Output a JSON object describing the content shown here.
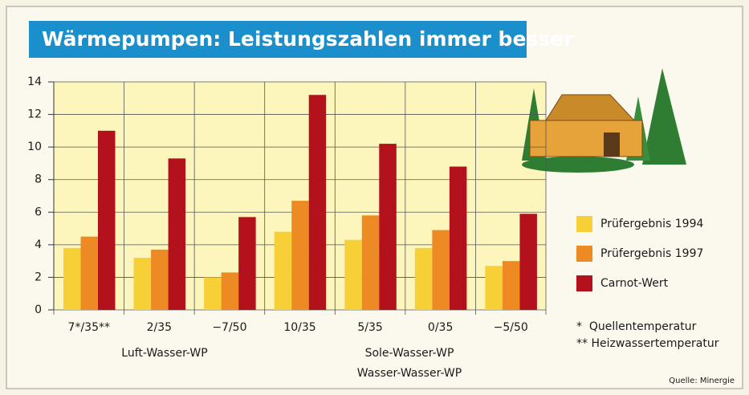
{
  "chart_data": {
    "type": "bar",
    "title": "Wärmepumpen: Leistungszahlen immer besser",
    "categories": [
      "7*/35**",
      "2/35",
      "−7/50",
      "10/35",
      "5/35",
      "0/35",
      "−5/50"
    ],
    "series": [
      {
        "name": "Prüfergebnis 1994",
        "color": "#f7cf36",
        "values": [
          3.8,
          3.2,
          2.0,
          4.8,
          4.3,
          3.8,
          2.7
        ]
      },
      {
        "name": "Prüfergebnis 1997",
        "color": "#ee8a24",
        "values": [
          4.5,
          3.7,
          2.3,
          6.7,
          5.8,
          4.9,
          3.0
        ]
      },
      {
        "name": "Carnot-Wert",
        "color": "#b3121c",
        "values": [
          11.0,
          9.3,
          5.7,
          13.2,
          10.2,
          8.8,
          5.9
        ]
      }
    ],
    "ylim": [
      0,
      14
    ],
    "yticks": [
      0,
      2,
      4,
      6,
      8,
      10,
      12,
      14
    ],
    "grid": true,
    "annotations": [
      "Luft-Wasser-WP",
      "Sole-Wasser-WP",
      "Wasser-Wasser-WP"
    ],
    "footnotes": [
      "*  Quellentemperatur",
      "** Heizwassertemperatur"
    ],
    "source": "Quelle: Minergie"
  }
}
